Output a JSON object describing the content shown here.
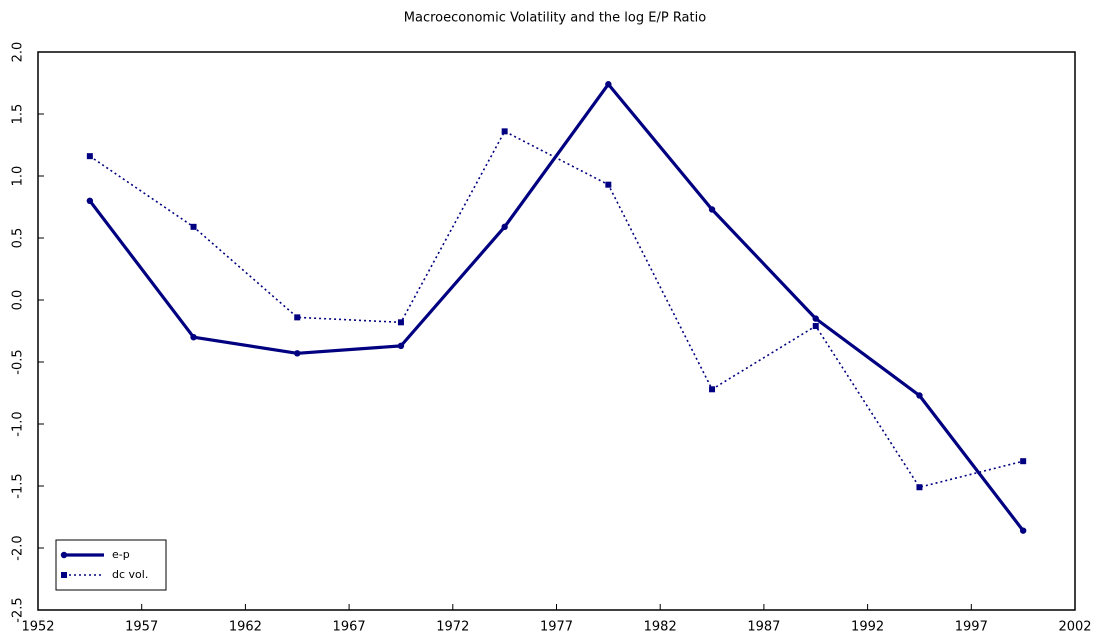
{
  "chart_data": {
    "type": "line",
    "title": "Macroeconomic Volatility and the log E/P Ratio",
    "x": [
      1954.5,
      1959.5,
      1964.5,
      1969.5,
      1974.5,
      1979.5,
      1984.5,
      1989.5,
      1994.5,
      1999.5
    ],
    "series": [
      {
        "name": "e-p",
        "color": "#000080",
        "style": "solid",
        "marker": "circle",
        "values": [
          0.8,
          -0.3,
          -0.43,
          -0.37,
          0.59,
          1.74,
          0.73,
          -0.15,
          -0.77,
          -1.86
        ]
      },
      {
        "name": "dc vol.",
        "color": "#000080",
        "style": "dotted",
        "marker": "square",
        "values": [
          1.16,
          0.59,
          -0.14,
          -0.18,
          1.36,
          0.93,
          -0.72,
          -0.21,
          -1.51,
          -1.3
        ]
      }
    ],
    "xlim": [
      1952,
      2002
    ],
    "xticks": [
      1952,
      1957,
      1962,
      1967,
      1972,
      1977,
      1982,
      1987,
      1992,
      1997,
      2002
    ],
    "ylim": [
      -2.5,
      2.0
    ],
    "yticks": [
      {
        "value": 2.0,
        "label": "2.0"
      },
      1.5,
      {
        "value": 1.0,
        "label": "1.0"
      },
      0.5,
      {
        "value": 0.0,
        "label": "0.0"
      },
      -0.5,
      {
        "value": -1.0,
        "label": "-1.0"
      },
      -1.5,
      {
        "value": -2.0,
        "label": "-2.0"
      },
      -2.5
    ],
    "legend": "lower left"
  }
}
